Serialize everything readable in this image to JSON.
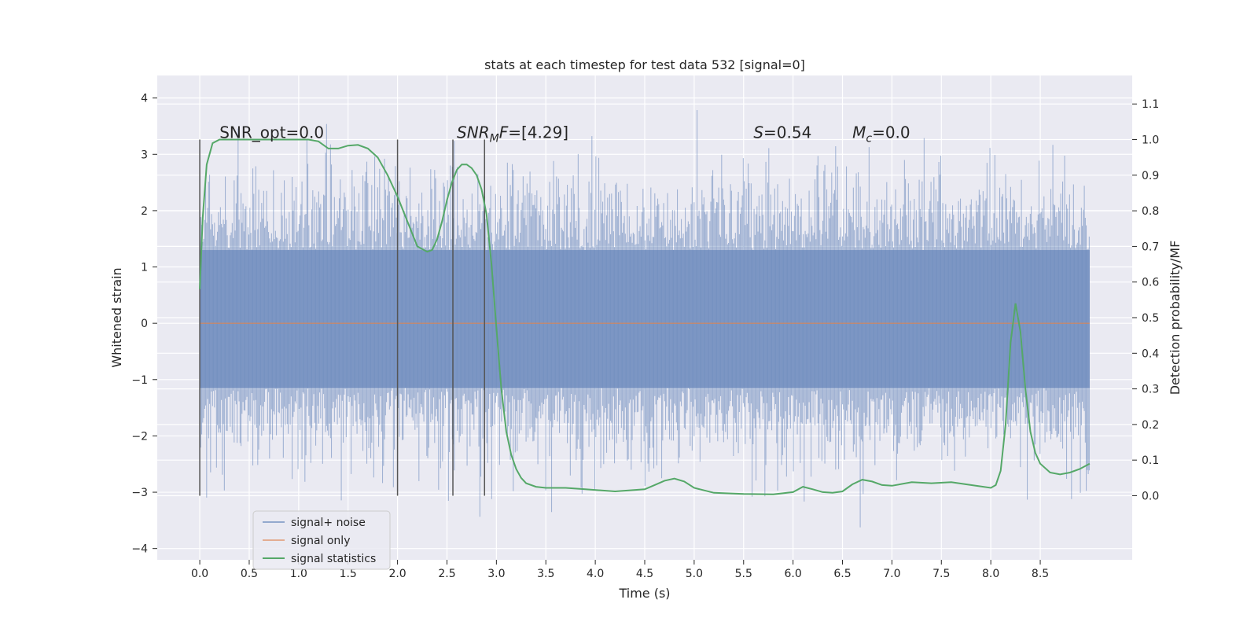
{
  "chart_data": {
    "type": "line",
    "title": "stats at each timestep for test data 532 [signal=0]",
    "xlabel": "Time (s)",
    "ylabel_left": "Whitened strain",
    "ylabel_right": "Detection probability/MF",
    "xlim": [
      -0.43,
      9.43
    ],
    "ylim_left": [
      -4.2,
      4.4
    ],
    "ylim_right": [
      -0.18,
      1.18
    ],
    "x_ticks": [
      "0.0",
      "0.5",
      "1.0",
      "1.5",
      "2.0",
      "2.5",
      "3.0",
      "3.5",
      "4.0",
      "4.5",
      "5.0",
      "5.5",
      "6.0",
      "6.5",
      "7.0",
      "7.5",
      "8.0",
      "8.5"
    ],
    "y_ticks_left": [
      "4",
      "3",
      "2",
      "1",
      "0",
      "−1",
      "−2",
      "−3",
      "−4"
    ],
    "y_ticks_right": [
      "1.1",
      "1.0",
      "0.9",
      "0.8",
      "0.7",
      "0.6",
      "0.5",
      "0.4",
      "0.3",
      "0.2",
      "0.1",
      "0.0"
    ],
    "noise_band": {
      "x_start": 0.0,
      "x_end": 9.0,
      "core_low": -1.15,
      "core_high": 1.3
    },
    "series": [
      {
        "name": "signal+ noise",
        "color": "#4c72b0"
      },
      {
        "name": "signal only",
        "color": "#dd8452",
        "values_constant": 0.0
      },
      {
        "name": "signal statistics",
        "color": "#55a868",
        "axis": "right",
        "x": [
          0.0,
          0.03,
          0.07,
          0.13,
          0.2,
          0.3,
          0.5,
          0.8,
          1.0,
          1.1,
          1.2,
          1.3,
          1.4,
          1.5,
          1.6,
          1.7,
          1.8,
          1.9,
          2.0,
          2.1,
          2.2,
          2.3,
          2.35,
          2.4,
          2.45,
          2.5,
          2.55,
          2.6,
          2.65,
          2.7,
          2.75,
          2.8,
          2.85,
          2.9,
          2.95,
          3.0,
          3.05,
          3.1,
          3.15,
          3.2,
          3.25,
          3.3,
          3.4,
          3.5,
          3.7,
          3.9,
          4.2,
          4.5,
          4.6,
          4.7,
          4.8,
          4.9,
          5.0,
          5.2,
          5.5,
          5.8,
          6.0,
          6.1,
          6.2,
          6.3,
          6.4,
          6.5,
          6.6,
          6.7,
          6.8,
          6.9,
          7.0,
          7.2,
          7.4,
          7.6,
          7.8,
          8.0,
          8.05,
          8.1,
          8.15,
          8.2,
          8.25,
          8.3,
          8.35,
          8.4,
          8.45,
          8.5,
          8.6,
          8.7,
          8.8,
          8.9,
          9.0
        ],
        "values": [
          0.58,
          0.78,
          0.93,
          0.99,
          1.0,
          1.0,
          1.0,
          1.0,
          1.0,
          1.0,
          0.995,
          0.975,
          0.975,
          0.983,
          0.985,
          0.975,
          0.95,
          0.9,
          0.84,
          0.77,
          0.7,
          0.685,
          0.69,
          0.72,
          0.77,
          0.83,
          0.88,
          0.915,
          0.93,
          0.93,
          0.92,
          0.9,
          0.86,
          0.79,
          0.65,
          0.47,
          0.3,
          0.18,
          0.115,
          0.075,
          0.05,
          0.035,
          0.025,
          0.022,
          0.022,
          0.018,
          0.012,
          0.018,
          0.03,
          0.042,
          0.048,
          0.04,
          0.022,
          0.008,
          0.005,
          0.004,
          0.01,
          0.025,
          0.018,
          0.01,
          0.008,
          0.012,
          0.032,
          0.045,
          0.04,
          0.03,
          0.028,
          0.038,
          0.035,
          0.038,
          0.03,
          0.022,
          0.03,
          0.07,
          0.2,
          0.43,
          0.54,
          0.46,
          0.3,
          0.18,
          0.12,
          0.09,
          0.065,
          0.06,
          0.065,
          0.075,
          0.09
        ]
      }
    ],
    "vertical_lines": [
      0.0,
      2.0,
      2.56,
      2.88
    ],
    "annotations": [
      {
        "text": "SNR_opt=0.0",
        "x": 0.2
      },
      {
        "base": "SNR",
        "sub": "M",
        "tail": "F=[4.29]",
        "x": 2.6
      },
      {
        "base": "S",
        "tail": "=0.54",
        "x": 5.6
      },
      {
        "base": "M",
        "sub": "c",
        "tail": "=0.0",
        "x": 6.6
      }
    ],
    "legend": {
      "placement": "lower-left",
      "entries": [
        "signal+ noise",
        "signal only",
        "signal statistics"
      ]
    },
    "grid": true
  }
}
